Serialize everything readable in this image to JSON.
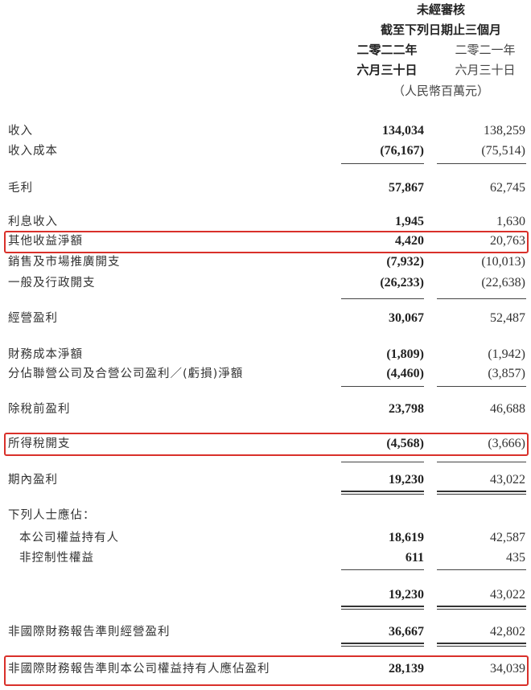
{
  "header": {
    "audit": "未經審核",
    "period": "截至下列日期止三個月",
    "year_2022": "二零二二年",
    "year_2021": "二零二一年",
    "date_2022": "六月三十日",
    "date_2021": "六月三十日",
    "unit": "（人民幣百萬元）"
  },
  "rows": [
    {
      "label": "收入",
      "v2022": "134,034",
      "v2021": "138,259"
    },
    {
      "label": "收入成本",
      "v2022": "(76,167)",
      "v2021": "(75,514)"
    },
    {
      "label": "毛利",
      "v2022": "57,867",
      "v2021": "62,745"
    },
    {
      "label": "利息收入",
      "v2022": "1,945",
      "v2021": "1,630"
    },
    {
      "label": "其他收益淨額",
      "v2022": "4,420",
      "v2021": "20,763",
      "highlighted": true
    },
    {
      "label": "銷售及市場推廣開支",
      "v2022": "(7,932)",
      "v2021": "(10,013)"
    },
    {
      "label": "一般及行政開支",
      "v2022": "(26,233)",
      "v2021": "(22,638)"
    },
    {
      "label": "經營盈利",
      "v2022": "30,067",
      "v2021": "52,487"
    },
    {
      "label": "財務成本淨額",
      "v2022": "(1,809)",
      "v2021": "(1,942)"
    },
    {
      "label": "分佔聯營公司及合營公司盈利／(虧損)淨額",
      "v2022": "(4,460)",
      "v2021": "(3,857)"
    },
    {
      "label": "除稅前盈利",
      "v2022": "23,798",
      "v2021": "46,688"
    },
    {
      "label": "所得稅開支",
      "v2022": "(4,568)",
      "v2021": "(3,666)",
      "highlighted": true
    },
    {
      "label": "期內盈利",
      "v2022": "19,230",
      "v2021": "43,022"
    },
    {
      "label": "下列人士應佔：",
      "v2022": "",
      "v2021": ""
    },
    {
      "label": "本公司權益持有人",
      "v2022": "18,619",
      "v2021": "42,587"
    },
    {
      "label": "非控制性權益",
      "v2022": "611",
      "v2021": "435"
    },
    {
      "label": "",
      "v2022": "19,230",
      "v2021": "43,022"
    },
    {
      "label": "非國際財務報告準則經營盈利",
      "v2022": "36,667",
      "v2021": "42,802"
    },
    {
      "label": "非國際財務報告準則本公司權益持有人應佔盈利",
      "v2022": "28,139",
      "v2021": "34,039",
      "highlighted": true
    }
  ],
  "highlight_color": "#d9302a"
}
